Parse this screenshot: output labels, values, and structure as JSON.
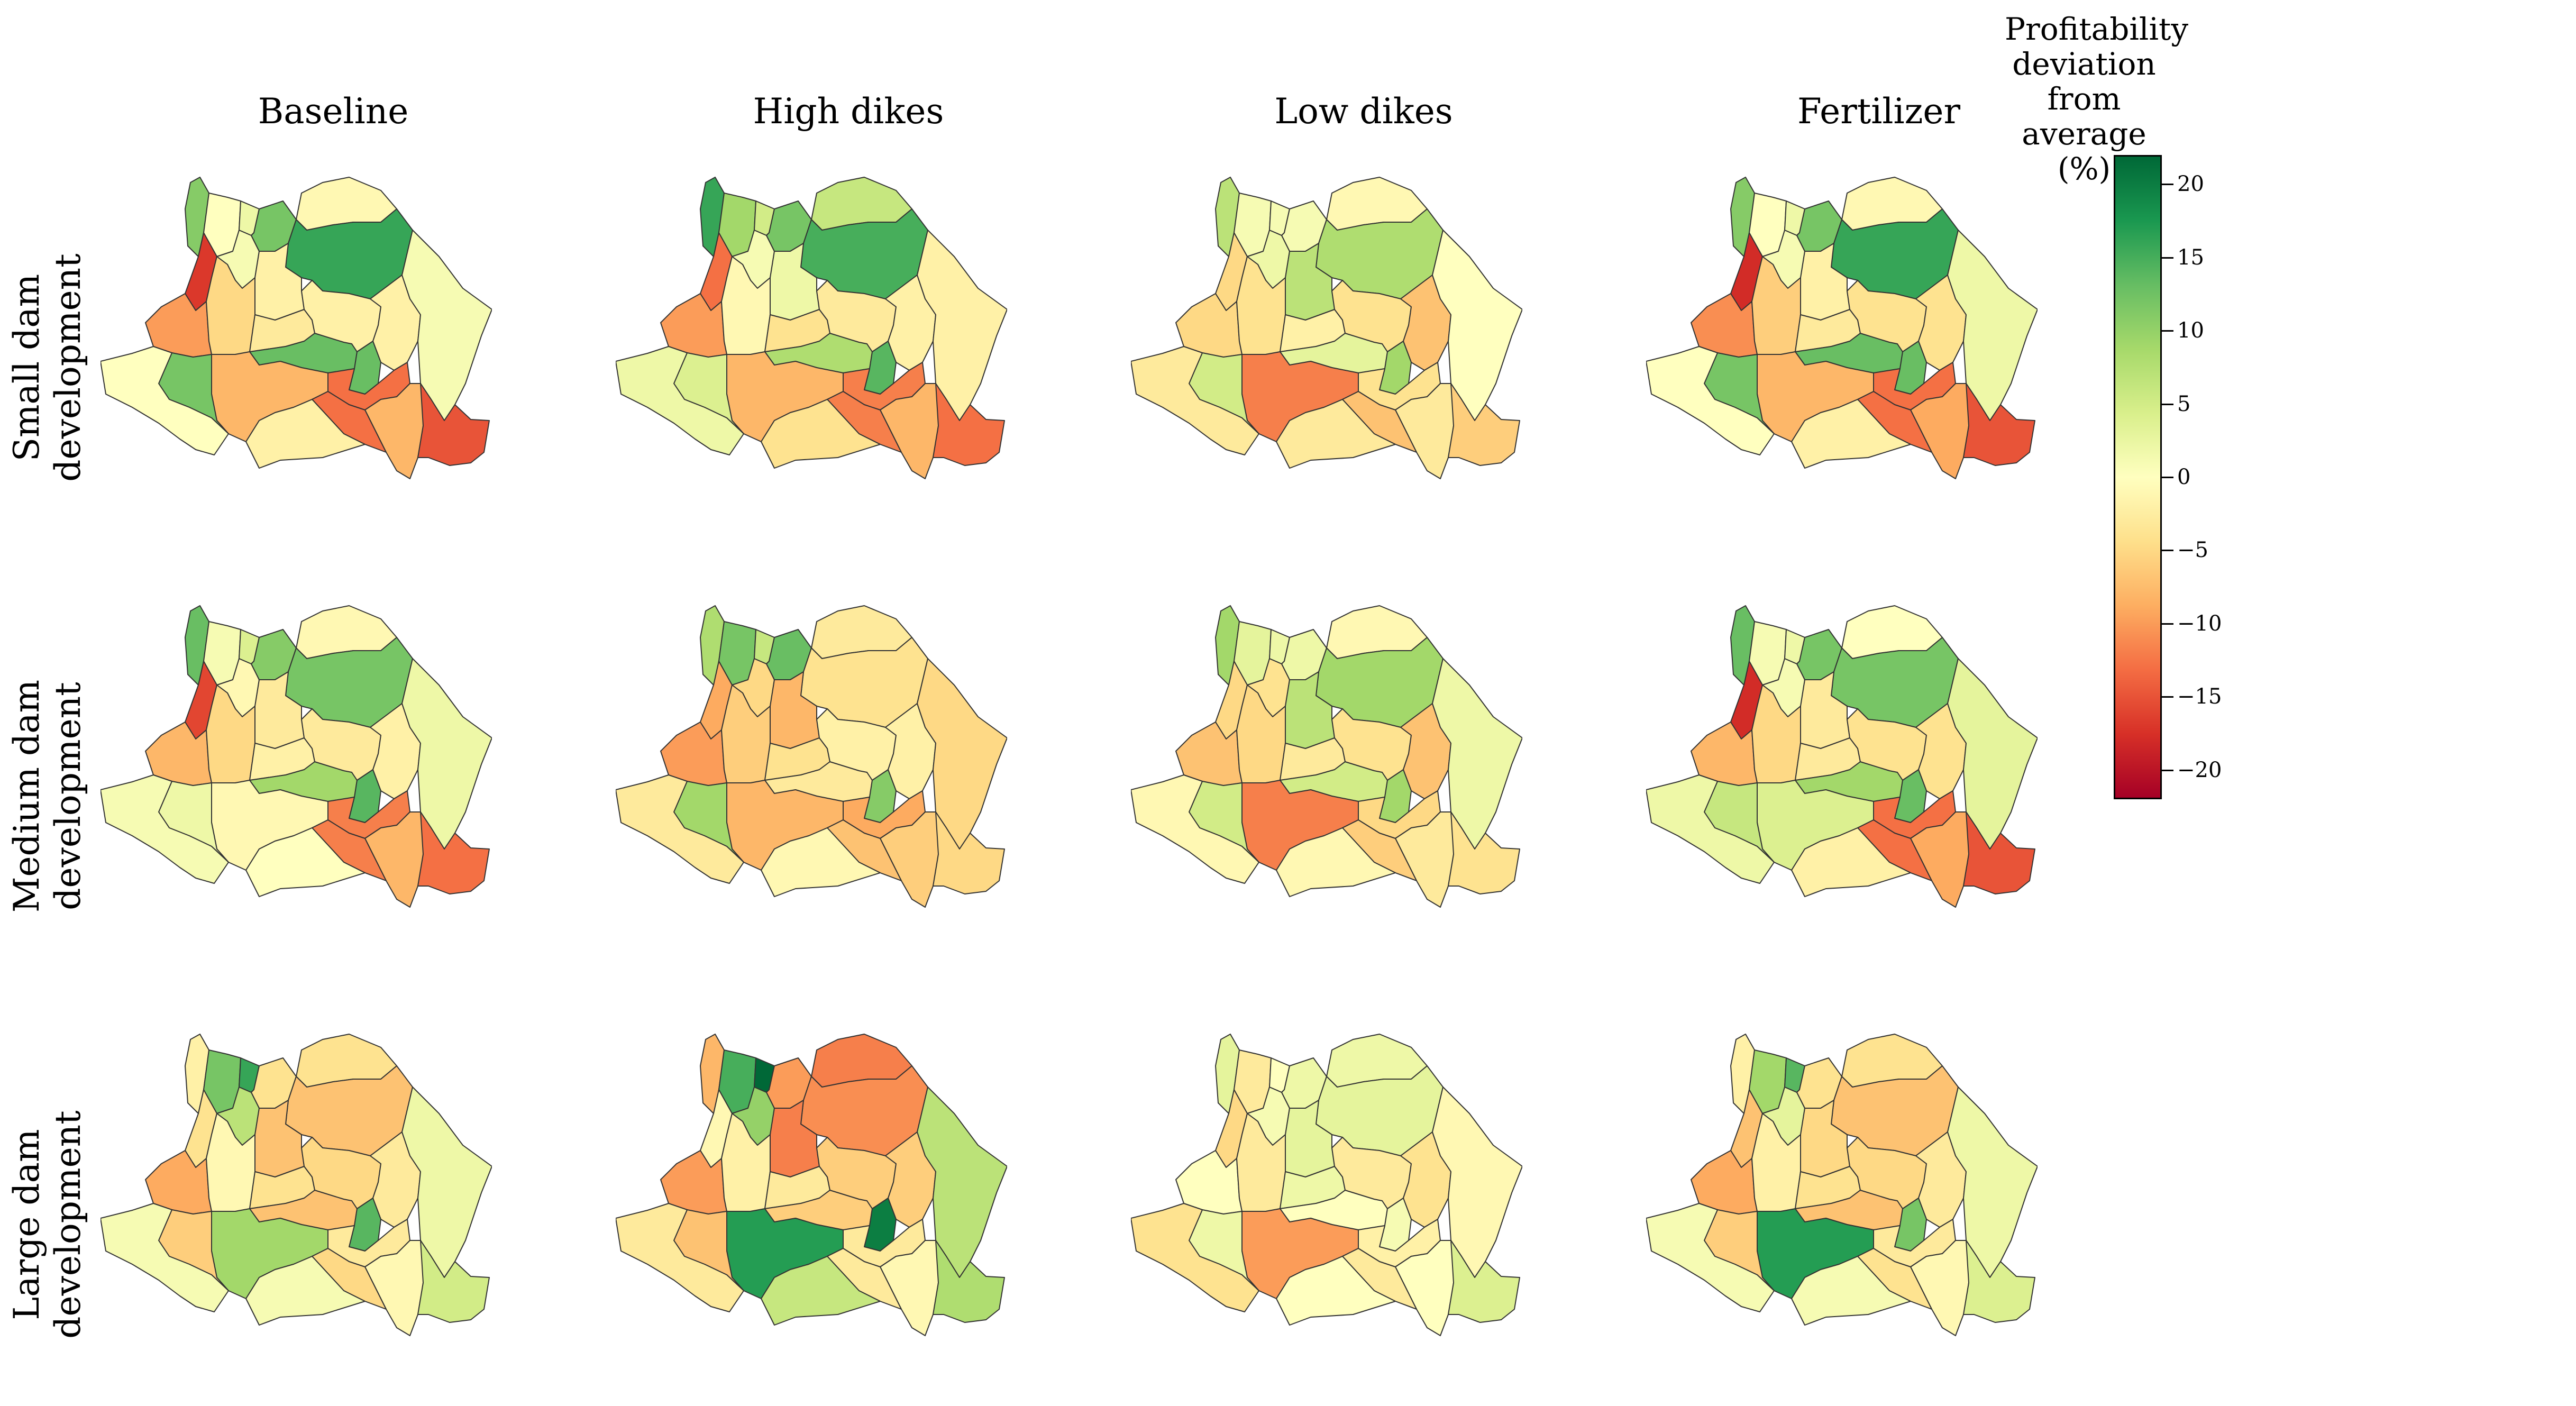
{
  "columns": [
    "Baseline",
    "High dikes",
    "Low dikes",
    "Fertilizer"
  ],
  "rows": [
    {
      "line1": "Small dam",
      "line2": "development"
    },
    {
      "line1": "Medium dam",
      "line2": "development"
    },
    {
      "line1": "Large dam",
      "line2": "development"
    }
  ],
  "colorbar": {
    "title_lines": [
      "Profitability",
      "deviation",
      "from",
      "average (%)"
    ],
    "ticks": [
      20,
      15,
      10,
      5,
      0,
      -5,
      -10,
      -15,
      -20
    ],
    "tick_labels": [
      "20",
      "15",
      "10",
      "5",
      "0",
      "−5",
      "−10",
      "−15",
      "−20"
    ],
    "range": [
      -22,
      22
    ],
    "colormap": "RdYlGn",
    "stops": [
      "#a50026",
      "#d73027",
      "#f46d43",
      "#fdae61",
      "#fee08b",
      "#ffffbf",
      "#d9ef8b",
      "#a6d96a",
      "#66bd63",
      "#1a9850",
      "#006837"
    ]
  },
  "region_names": [
    "r01",
    "r02",
    "r03",
    "r04",
    "r05",
    "r06",
    "r07",
    "r08",
    "r09",
    "r10",
    "r11",
    "r12",
    "r13",
    "r14",
    "r15",
    "r16",
    "r17",
    "r18",
    "r19",
    "r20",
    "r21",
    "r22",
    "r23",
    "r24",
    "r25"
  ],
  "panels": [
    [
      [
        11,
        0,
        1,
        -17,
        2,
        12,
        -1,
        16,
        -2,
        -10,
        -5,
        -3,
        13,
        -8,
        12,
        0,
        -2,
        -2,
        13,
        1,
        -13,
        -8,
        -13,
        -15,
        -2
      ],
      [
        16,
        9,
        1,
        -13,
        5,
        12,
        6,
        15,
        2,
        -10,
        -1,
        -4,
        8,
        -8,
        4,
        2,
        -3,
        -2,
        14,
        -2,
        -12,
        -8,
        -12,
        -13,
        -4
      ],
      [
        7,
        1,
        2,
        -5,
        1,
        1,
        -1,
        8,
        7,
        -5,
        -4,
        -2,
        3,
        -12,
        5,
        -3,
        -4,
        -7,
        9,
        0,
        -4,
        -3,
        -7,
        -6,
        -3
      ],
      [
        11,
        0,
        1,
        -18,
        2,
        12,
        -1,
        16,
        -2,
        -11,
        -6,
        -3,
        13,
        -8,
        12,
        0,
        -4,
        -4,
        13,
        2,
        -13,
        -9,
        -13,
        -15,
        -2
      ]
    ],
    [
      [
        13,
        1,
        -1,
        -16,
        4,
        11,
        -1,
        12,
        -3,
        -8,
        -5,
        -2,
        9,
        -1,
        2,
        1,
        -3,
        -2,
        14,
        2,
        -12,
        -8,
        -12,
        -13,
        0
      ],
      [
        8,
        12,
        -5,
        -9,
        6,
        13,
        -3,
        -4,
        -8,
        -10,
        -6,
        -4,
        -3,
        -8,
        9,
        -3,
        -2,
        -2,
        11,
        -5,
        -9,
        -6,
        -7,
        -5,
        -1
      ],
      [
        9,
        3,
        -4,
        -5,
        2,
        2,
        -1,
        9,
        7,
        -7,
        -5,
        -3,
        5,
        -12,
        5,
        -1,
        -4,
        -7,
        9,
        2,
        -5,
        -3,
        -6,
        -4,
        -1
      ],
      [
        13,
        1,
        1,
        -18,
        2,
        12,
        0,
        12,
        -3,
        -8,
        -5,
        -3,
        9,
        4,
        6,
        2,
        -4,
        -4,
        13,
        3,
        -13,
        -9,
        -13,
        -15,
        -2
      ]
    ],
    [
      [
        -2,
        12,
        7,
        -4,
        16,
        -4,
        -4,
        -7,
        -7,
        -9,
        -1,
        -4,
        -7,
        9,
        -6,
        1,
        -5,
        -3,
        14,
        2,
        -3,
        -1,
        -5,
        5,
        1
      ],
      [
        -8,
        15,
        10,
        -1,
        22,
        -10,
        -12,
        -11,
        -12,
        -10,
        -2,
        -3,
        -6,
        17,
        -7,
        -3,
        -6,
        -6,
        20,
        7,
        -3,
        -1,
        -3,
        8,
        6
      ],
      [
        3,
        -3,
        1,
        -5,
        0,
        2,
        2,
        3,
        3,
        0,
        -3,
        2,
        0,
        -10,
        2,
        -4,
        -3,
        -4,
        1,
        -1,
        -2,
        0,
        -3,
        4,
        0
      ],
      [
        -2,
        9,
        3,
        -7,
        14,
        -4,
        -4,
        -7,
        -5,
        -9,
        -2,
        -4,
        -7,
        17,
        -6,
        1,
        -5,
        -3,
        12,
        2,
        -3,
        -1,
        -4,
        4,
        1
      ]
    ]
  ]
}
